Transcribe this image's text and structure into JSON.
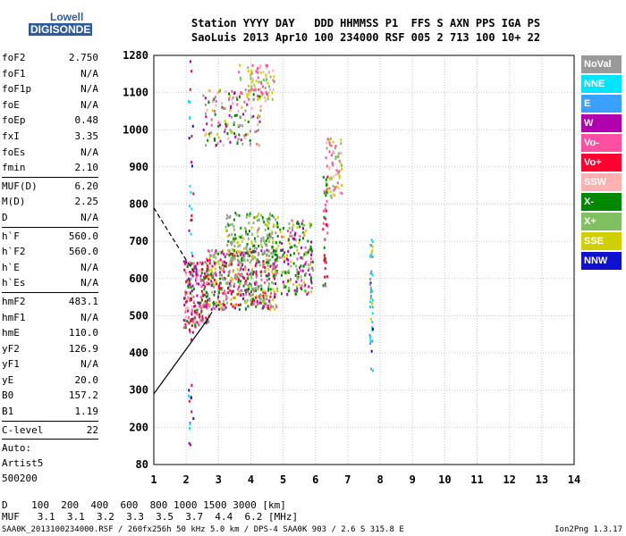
{
  "logo": {
    "top": "Lowell",
    "main": "DIGISONDE"
  },
  "header": {
    "line1": "Station YYYY DAY   DDD HHMMSS P1  FFS S AXN PPS IGA PS",
    "line2": "SaoLuis 2013 Apr10 100 234000 RSF 005 2 713 100 10+ 22"
  },
  "params": [
    {
      "name": "foF2",
      "value": "2.750"
    },
    {
      "name": "foF1",
      "value": "N/A"
    },
    {
      "name": "foF1p",
      "value": "N/A"
    },
    {
      "name": "foE",
      "value": "N/A"
    },
    {
      "name": "foEp",
      "value": "0.48"
    },
    {
      "name": "fxI",
      "value": "3.35"
    },
    {
      "name": "foEs",
      "value": "N/A"
    },
    {
      "name": "fmin",
      "value": "2.10"
    },
    {
      "name": "MUF(D)",
      "value": "6.20",
      "sep": true
    },
    {
      "name": "M(D)",
      "value": "2.25"
    },
    {
      "name": "D",
      "value": "N/A"
    },
    {
      "name": "h`F",
      "value": "560.0",
      "sep": true
    },
    {
      "name": "h`F2",
      "value": "560.0"
    },
    {
      "name": "h`E",
      "value": "N/A"
    },
    {
      "name": "h`Es",
      "value": "N/A"
    },
    {
      "name": "hmF2",
      "value": "483.1",
      "sep": true
    },
    {
      "name": "hmF1",
      "value": "N/A"
    },
    {
      "name": "hmE",
      "value": "110.0"
    },
    {
      "name": "yF2",
      "value": "126.9"
    },
    {
      "name": "yF1",
      "value": "N/A"
    },
    {
      "name": "yE",
      "value": "20.0"
    },
    {
      "name": "B0",
      "value": "157.2"
    },
    {
      "name": "B1",
      "value": "1.19"
    },
    {
      "name": "C-level",
      "value": "22",
      "sep": true
    }
  ],
  "auto": {
    "line1": "Auto:",
    "line2": "Artist5",
    "line3": "500200"
  },
  "legend": [
    {
      "label": "NoVal",
      "color": "#999999"
    },
    {
      "label": "NNE",
      "color": "#00e5ff"
    },
    {
      "label": "E",
      "color": "#3aa0ff"
    },
    {
      "label": "W",
      "color": "#b000b0"
    },
    {
      "label": "Vo-",
      "color": "#ff4fa0"
    },
    {
      "label": "Vo+",
      "color": "#ff0030"
    },
    {
      "label": "SSW",
      "color": "#ffb0b0"
    },
    {
      "label": "X-",
      "color": "#008800"
    },
    {
      "label": "X+",
      "color": "#80c060"
    },
    {
      "label": "SSE",
      "color": "#d0d000"
    },
    {
      "label": "NNW",
      "color": "#1010d0"
    }
  ],
  "muf": {
    "d_line": "D    100  200  400  600  800 1000 1500 3000 [km]",
    "muf_line": "MUF   3.1  3.1  3.2  3.3  3.5  3.7  4.4  6.2 [MHz]"
  },
  "footer": {
    "left": "SAA0K_2013100234000.RSF / 260fx256h 50 kHz 5.0 km / DPS-4 SAA0K 903 / 2.6 S 315.8 E",
    "right": "Ion2Png 1.3.17"
  },
  "chart_data": {
    "type": "scatter",
    "x_ticks": [
      1,
      2,
      3,
      4,
      5,
      6,
      7,
      8,
      9,
      10,
      11,
      12,
      13,
      14
    ],
    "y_ticks": [
      80,
      200,
      300,
      400,
      500,
      600,
      700,
      800,
      900,
      1000,
      1100,
      1280
    ],
    "xlim": [
      1,
      14
    ],
    "ylim": [
      80,
      1280
    ],
    "grid": true,
    "clusters": [
      {
        "x": [
          1.9,
          2.7
        ],
        "y": [
          470,
          650
        ],
        "density": 220,
        "colors": [
          "#ff0030",
          "#ff4fa0",
          "#b000b0",
          "#ffb0b0",
          "#008800"
        ]
      },
      {
        "x": [
          2.6,
          4.8
        ],
        "y": [
          520,
          680
        ],
        "density": 520,
        "colors": [
          "#008800",
          "#d0d000",
          "#80c060",
          "#ff0030",
          "#ff4fa0",
          "#b000b0",
          "#999999"
        ]
      },
      {
        "x": [
          3.2,
          4.9
        ],
        "y": [
          650,
          780
        ],
        "density": 200,
        "colors": [
          "#d0d000",
          "#80c060",
          "#008800",
          "#999999"
        ]
      },
      {
        "x": [
          4.9,
          5.9
        ],
        "y": [
          560,
          760
        ],
        "density": 180,
        "colors": [
          "#008800",
          "#ff4fa0",
          "#d0d000",
          "#80c060",
          "#b000b0"
        ]
      },
      {
        "x": [
          2.5,
          4.3
        ],
        "y": [
          960,
          1120
        ],
        "density": 150,
        "colors": [
          "#ff4fa0",
          "#ffb0b0",
          "#b000b0",
          "#008800",
          "#999999",
          "#d0d000"
        ]
      },
      {
        "x": [
          3.6,
          4.7
        ],
        "y": [
          1080,
          1240
        ],
        "density": 80,
        "colors": [
          "#ffb0b0",
          "#d0d000",
          "#ff4fa0",
          "#80c060"
        ]
      },
      {
        "x": [
          6.3,
          6.8
        ],
        "y": [
          820,
          980
        ],
        "density": 70,
        "colors": [
          "#ffb0b0",
          "#d0d000",
          "#ff4fa0",
          "#80c060"
        ]
      },
      {
        "x": [
          6.2,
          6.35
        ],
        "y": [
          570,
          880
        ],
        "density": 40,
        "colors": [
          "#ff4fa0",
          "#008800",
          "#ff0030"
        ]
      },
      {
        "x": [
          7.65,
          7.75
        ],
        "y": [
          350,
          720
        ],
        "density": 45,
        "colors": [
          "#d0d000",
          "#999999",
          "#00e5ff",
          "#3aa0ff",
          "#1010d0"
        ]
      },
      {
        "x": [
          2.05,
          2.2
        ],
        "y": [
          120,
          1280
        ],
        "density": 45,
        "colors": [
          "#1010d0",
          "#b000b0",
          "#00e5ff",
          "#ff0030"
        ]
      }
    ],
    "solid_line": {
      "x": [
        1.0,
        1.5,
        2.0,
        2.5,
        2.8
      ],
      "y": [
        290,
        350,
        410,
        470,
        510
      ]
    },
    "dashed_line": {
      "x": [
        1.0,
        1.5,
        2.0,
        2.3
      ],
      "y": [
        790,
        720,
        650,
        610
      ]
    }
  }
}
